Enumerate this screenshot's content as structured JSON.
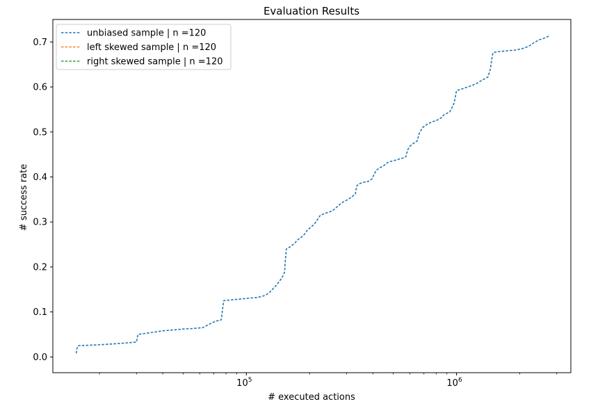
{
  "chart_data": {
    "type": "line",
    "title": "Evaluation Results",
    "xlabel": "# executed actions",
    "ylabel": "# success rate",
    "x_scale": "log",
    "xlim": [
      12000,
      3500000
    ],
    "ylim": [
      -0.035,
      0.75
    ],
    "yticks": [
      0.0,
      0.1,
      0.2,
      0.3,
      0.4,
      0.5,
      0.6,
      0.7
    ],
    "ytick_labels": [
      "0.0",
      "0.1",
      "0.2",
      "0.3",
      "0.4",
      "0.5",
      "0.6",
      "0.7"
    ],
    "xticks_major": [
      100000,
      1000000
    ],
    "xtick_major_base": [
      "10",
      "10"
    ],
    "xtick_major_exp": [
      "5",
      "6"
    ],
    "grid": false,
    "legend_position": "top-left",
    "series": [
      {
        "name": "unbiased sample | n =120",
        "color": "#1f77b4",
        "style": "dashed",
        "x": [
          15500,
          15600,
          15800,
          20000,
          25000,
          30000,
          30500,
          35000,
          40000,
          45000,
          50000,
          55000,
          62000,
          63000,
          65000,
          68000,
          72000,
          75000,
          76000,
          77000,
          78000,
          90000,
          100000,
          112000,
          118000,
          123000,
          128000,
          133000,
          138000,
          143000,
          148000,
          150000,
          152000,
          153000,
          155000,
          162000,
          170000,
          175000,
          180000,
          187000,
          196000,
          205000,
          212000,
          225000,
          240000,
          255000,
          265000,
          275000,
          290000,
          305000,
          320000,
          330000,
          335000,
          345000,
          360000,
          380000,
          395000,
          405000,
          415000,
          430000,
          450000,
          470000,
          490000,
          510000,
          535000,
          555000,
          575000,
          585000,
          600000,
          625000,
          650000,
          665000,
          690000,
          730000,
          770000,
          800000,
          820000,
          850000,
          870000,
          890000,
          930000,
          955000,
          975000,
          985000,
          1000000,
          1070000,
          1130000,
          1180000,
          1250000,
          1300000,
          1360000,
          1410000,
          1450000,
          1470000,
          1490000,
          1550000,
          1700000,
          1900000,
          2050000,
          2200000,
          2330000,
          2480000,
          2600000,
          2750000
        ],
        "y": [
          0.008,
          0.017,
          0.025,
          0.027,
          0.03,
          0.033,
          0.05,
          0.054,
          0.058,
          0.06,
          0.062,
          0.063,
          0.065,
          0.067,
          0.07,
          0.075,
          0.08,
          0.081,
          0.083,
          0.105,
          0.125,
          0.128,
          0.13,
          0.132,
          0.134,
          0.137,
          0.142,
          0.15,
          0.158,
          0.167,
          0.176,
          0.183,
          0.188,
          0.21,
          0.24,
          0.245,
          0.253,
          0.26,
          0.264,
          0.27,
          0.283,
          0.29,
          0.297,
          0.315,
          0.32,
          0.324,
          0.33,
          0.337,
          0.345,
          0.35,
          0.357,
          0.362,
          0.38,
          0.385,
          0.388,
          0.39,
          0.395,
          0.405,
          0.415,
          0.42,
          0.425,
          0.432,
          0.435,
          0.437,
          0.44,
          0.442,
          0.445,
          0.46,
          0.468,
          0.475,
          0.48,
          0.497,
          0.51,
          0.518,
          0.523,
          0.525,
          0.528,
          0.532,
          0.538,
          0.54,
          0.545,
          0.555,
          0.565,
          0.575,
          0.592,
          0.596,
          0.6,
          0.603,
          0.608,
          0.613,
          0.618,
          0.622,
          0.64,
          0.66,
          0.676,
          0.678,
          0.68,
          0.682,
          0.685,
          0.69,
          0.698,
          0.705,
          0.708,
          0.713
        ]
      },
      {
        "name": "left skewed sample | n =120",
        "color": "#ff7f0e",
        "style": "dashed",
        "x": [],
        "y": []
      },
      {
        "name": "right skewed sample | n =120",
        "color": "#2ca02c",
        "style": "dashed",
        "x": [],
        "y": []
      }
    ]
  }
}
